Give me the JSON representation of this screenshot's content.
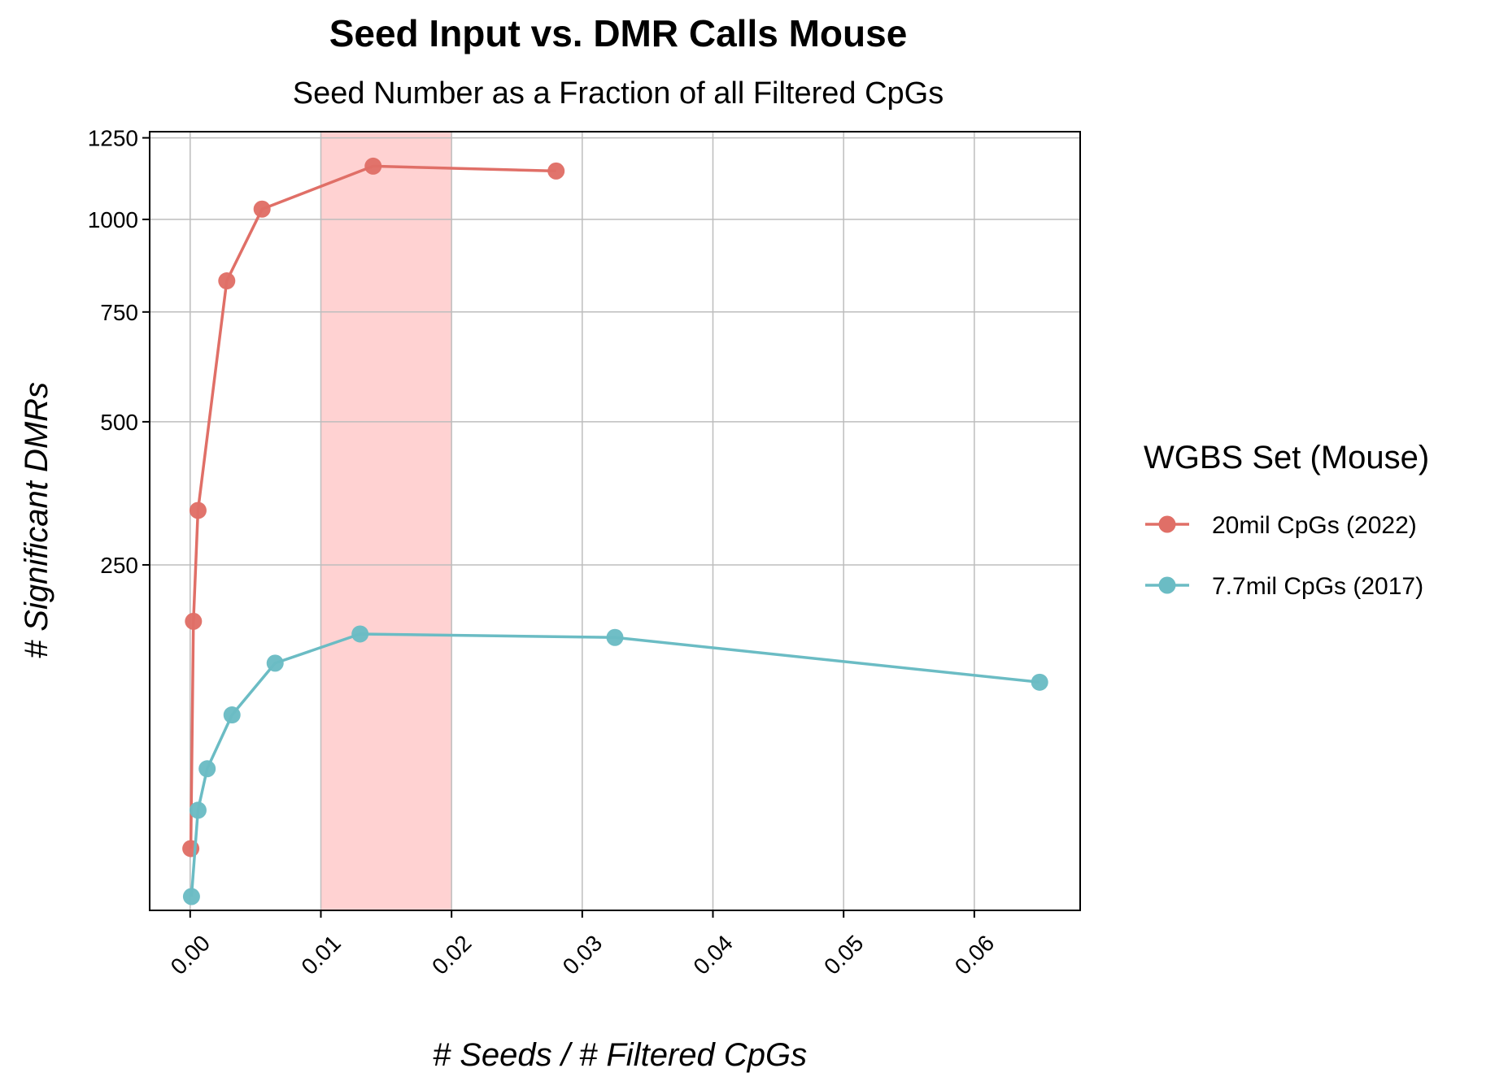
{
  "chart_data": {
    "type": "line",
    "title": "Seed Input vs. DMR Calls Mouse",
    "subtitle": "Seed Number as a Fraction of all Filtered CpGs",
    "xlabel": "# Seeds / # Filtered CpGs",
    "ylabel": "# Significant DMRs",
    "xlim": [
      -0.0031,
      0.0681
    ],
    "x_ticks": [
      0.0,
      0.01,
      0.02,
      0.03,
      0.04,
      0.05,
      0.06
    ],
    "x_tick_labels": [
      "0.00",
      "0.01",
      "0.02",
      "0.03",
      "0.04",
      "0.05",
      "0.06"
    ],
    "y_scale": "sqrt",
    "ylim": [
      0,
      1270
    ],
    "y_ticks": [
      250,
      500,
      750,
      1000,
      1250
    ],
    "y_tick_labels": [
      "250",
      "500",
      "750",
      "1000",
      "1250"
    ],
    "grid": true,
    "highlight_band": {
      "x": [
        0.01,
        0.02
      ],
      "color": "#ffd2d2"
    },
    "legend": {
      "title": "WGBS Set (Mouse)",
      "position": "right"
    },
    "series": [
      {
        "name": "20mil CpGs (2022)",
        "color": "#e06f67",
        "x": [
          5e-05,
          0.00025,
          0.0006,
          0.0028,
          0.0055,
          0.014,
          0.028
        ],
        "y": [
          8,
          175,
          335,
          830,
          1030,
          1160,
          1145
        ]
      },
      {
        "name": "7.7mil CpGs (2017)",
        "color": "#6bbcc4",
        "x": [
          0.0001,
          0.0006,
          0.0013,
          0.0032,
          0.0065,
          0.013,
          0.0325,
          0.065
        ],
        "y": [
          0.4,
          21,
          42,
          80,
          128,
          160,
          156,
          109
        ]
      }
    ]
  }
}
